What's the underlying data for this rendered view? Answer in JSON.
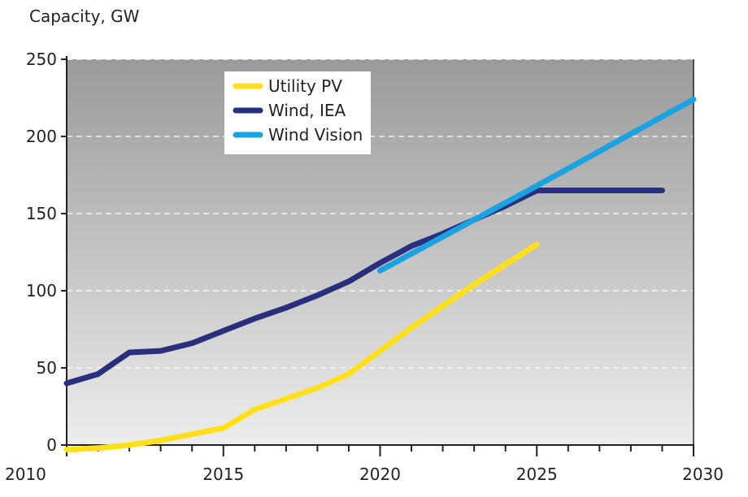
{
  "chart_data": {
    "type": "line",
    "ylabel": "Capacity, GW",
    "xlim": [
      2010,
      2030
    ],
    "ylim": [
      0,
      250
    ],
    "x_ticks": [
      2010,
      2015,
      2020,
      2025,
      2030
    ],
    "y_ticks": [
      0,
      50,
      100,
      150,
      200,
      250
    ],
    "grid": true,
    "legend_position": "top-center",
    "series": [
      {
        "name": "Utility PV",
        "color": "#FFE01B",
        "x": [
          2010,
          2011,
          2012,
          2013,
          2014,
          2015,
          2016,
          2017,
          2018,
          2019,
          2020,
          2021,
          2022,
          2023,
          2024,
          2025
        ],
        "values": [
          -3,
          -2,
          0,
          3,
          7,
          11,
          23,
          30,
          37,
          46,
          61,
          76,
          90,
          104,
          117,
          130
        ]
      },
      {
        "name": "Wind, IEA",
        "color": "#2A2F7D",
        "x": [
          2010,
          2011,
          2012,
          2013,
          2014,
          2015,
          2016,
          2017,
          2018,
          2019,
          2020,
          2021,
          2022,
          2023,
          2024,
          2025,
          2026,
          2027,
          2028,
          2029
        ],
        "values": [
          40,
          46,
          60,
          61,
          66,
          74,
          82,
          89,
          97,
          106,
          118,
          129,
          137,
          146,
          155,
          165,
          165,
          165,
          165,
          165
        ]
      },
      {
        "name": "Wind Vision",
        "color": "#1AA3E0",
        "x": [
          2020,
          2025,
          2030
        ],
        "values": [
          113,
          168,
          224
        ]
      }
    ]
  }
}
